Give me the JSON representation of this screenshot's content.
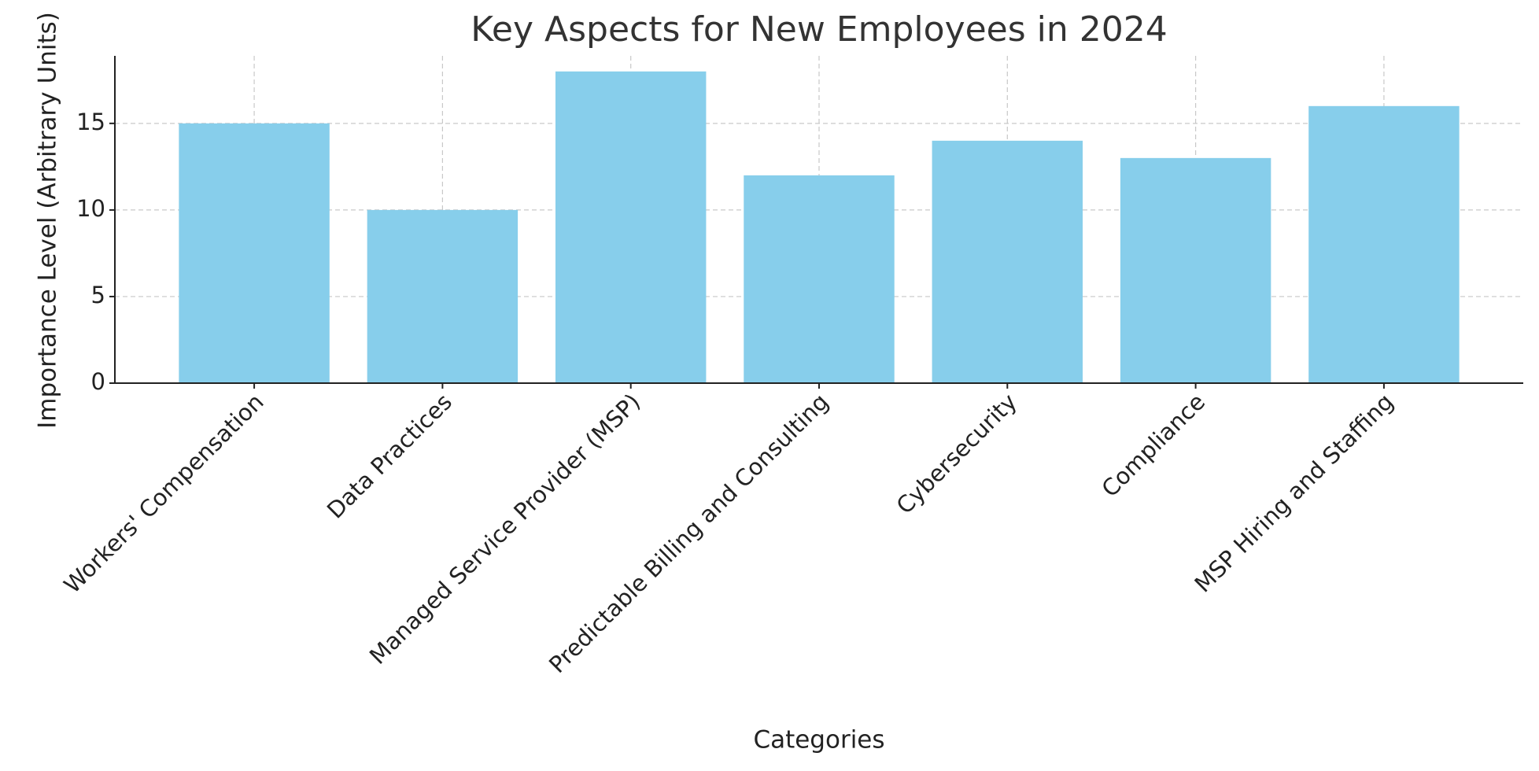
{
  "chart_data": {
    "type": "bar",
    "title": "Key Aspects for New Employees in 2024",
    "x_label": "Categories",
    "y_label": "Importance Level (Arbitrary Units)",
    "categories": [
      "Workers' Compensation",
      "Data Practices",
      "Managed Service Provider (MSP)",
      "Predictable Billing and Consulting",
      "Cybersecurity",
      "Compliance",
      "MSP Hiring and Staffing"
    ],
    "values": [
      15,
      10,
      18,
      12,
      14,
      13,
      16
    ],
    "color": "#87ceeb",
    "ylim": [
      0,
      18.9
    ],
    "yticks": [
      0,
      5,
      10,
      15
    ],
    "grid": true
  }
}
